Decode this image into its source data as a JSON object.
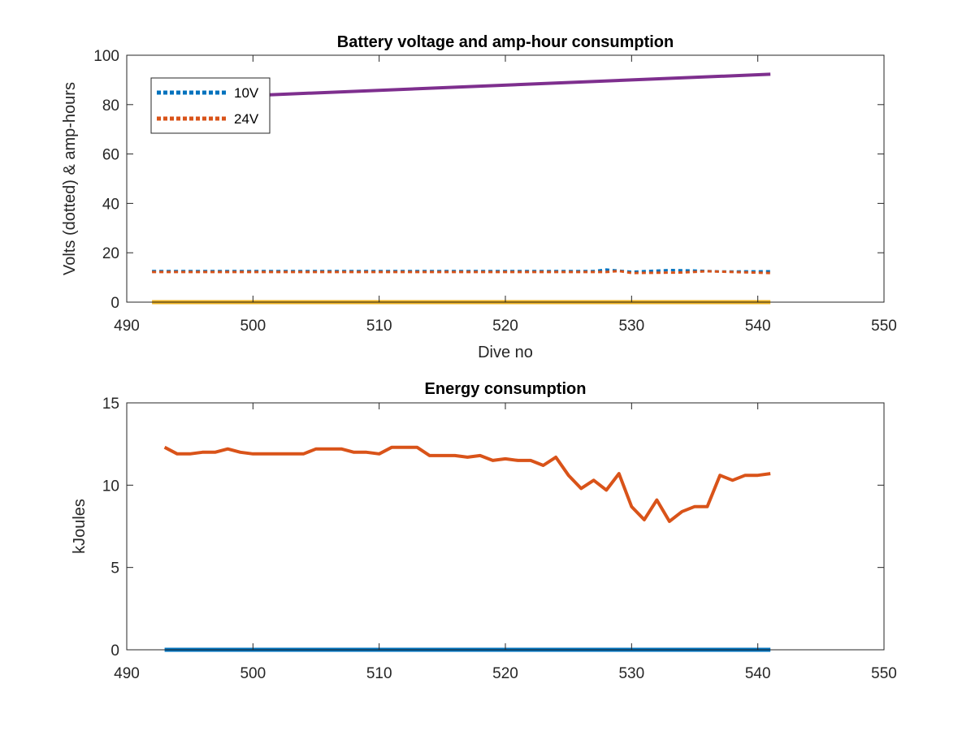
{
  "chart_data": [
    {
      "type": "line",
      "title": "Battery voltage and amp-hour consumption",
      "xlabel": "Dive no",
      "ylabel": "Volts (dotted) & amp-hours",
      "xlim": [
        490,
        550
      ],
      "ylim": [
        0,
        100
      ],
      "xticks": [
        490,
        500,
        510,
        520,
        530,
        540,
        550
      ],
      "yticks": [
        0,
        20,
        40,
        60,
        80,
        100
      ],
      "grid": false,
      "legend_position": "top-left",
      "series": [
        {
          "name": "10V",
          "style": "dotted",
          "color": "#0072BD",
          "x": [
            492,
            500,
            510,
            520,
            527,
            528,
            530,
            533,
            535,
            537,
            541
          ],
          "y": [
            12.6,
            12.6,
            12.6,
            12.6,
            12.6,
            13.2,
            12.3,
            13.0,
            12.8,
            12.4,
            12.5
          ]
        },
        {
          "name": "24V",
          "style": "dotted",
          "color": "#D95319",
          "x": [
            492,
            500,
            510,
            520,
            528,
            529,
            530,
            534,
            536,
            541
          ],
          "y": [
            12.2,
            12.2,
            12.2,
            12.2,
            12.2,
            12.6,
            11.8,
            12.0,
            12.5,
            11.8
          ]
        },
        {
          "style": "solid",
          "color": "#EDB120",
          "x": [
            492,
            541
          ],
          "y": [
            0,
            0
          ]
        },
        {
          "style": "solid",
          "color": "#7E2F8E",
          "x": [
            492,
            541
          ],
          "y": [
            82,
            92.3
          ]
        }
      ]
    },
    {
      "type": "line",
      "title": "Energy consumption",
      "xlabel": "",
      "ylabel": "kJoules",
      "xlim": [
        490,
        550
      ],
      "ylim": [
        0,
        15
      ],
      "xticks": [
        490,
        500,
        510,
        520,
        530,
        540,
        550
      ],
      "yticks": [
        0,
        5,
        10,
        15
      ],
      "grid": false,
      "series": [
        {
          "style": "solid",
          "color": "#0072BD",
          "x": [
            493,
            541
          ],
          "y": [
            0,
            0
          ]
        },
        {
          "style": "solid",
          "color": "#D95319",
          "x": [
            493,
            494,
            495,
            496,
            497,
            498,
            499,
            500,
            501,
            502,
            503,
            504,
            505,
            506,
            507,
            508,
            509,
            510,
            511,
            512,
            513,
            514,
            515,
            516,
            517,
            518,
            519,
            520,
            521,
            522,
            523,
            524,
            525,
            526,
            527,
            528,
            529,
            530,
            531,
            532,
            533,
            534,
            535,
            536,
            537,
            538,
            539,
            540,
            541
          ],
          "y": [
            12.3,
            11.9,
            11.9,
            12.0,
            12.0,
            12.2,
            12.0,
            11.9,
            11.9,
            11.9,
            11.9,
            11.9,
            12.2,
            12.2,
            12.2,
            12.0,
            12.0,
            11.9,
            12.3,
            12.3,
            12.3,
            11.8,
            11.8,
            11.8,
            11.7,
            11.8,
            11.5,
            11.6,
            11.5,
            11.5,
            11.2,
            11.7,
            10.6,
            9.8,
            10.3,
            9.7,
            10.7,
            8.7,
            7.9,
            9.1,
            7.8,
            8.4,
            8.7,
            8.7,
            10.6,
            10.3,
            10.6,
            10.6,
            10.7
          ]
        }
      ]
    }
  ]
}
